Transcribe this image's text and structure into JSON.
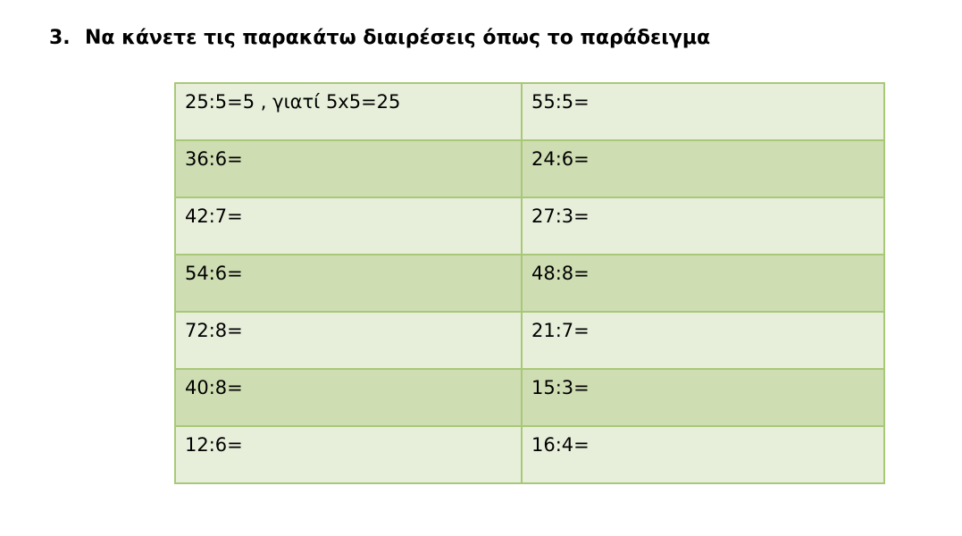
{
  "heading": {
    "number": "3.",
    "text": "Να κάνετε τις παρακάτω διαιρέσεις όπως το παράδειγμα"
  },
  "table": {
    "rows": [
      [
        "25:5=5 , γιατί 5x5=25",
        "55:5="
      ],
      [
        "36:6=",
        "24:6="
      ],
      [
        "42:7=",
        "27:3="
      ],
      [
        "54:6=",
        "48:8="
      ],
      [
        "72:8=",
        "21:7="
      ],
      [
        "40:8=",
        "15:3="
      ],
      [
        "12:6=",
        "16:4="
      ]
    ]
  }
}
